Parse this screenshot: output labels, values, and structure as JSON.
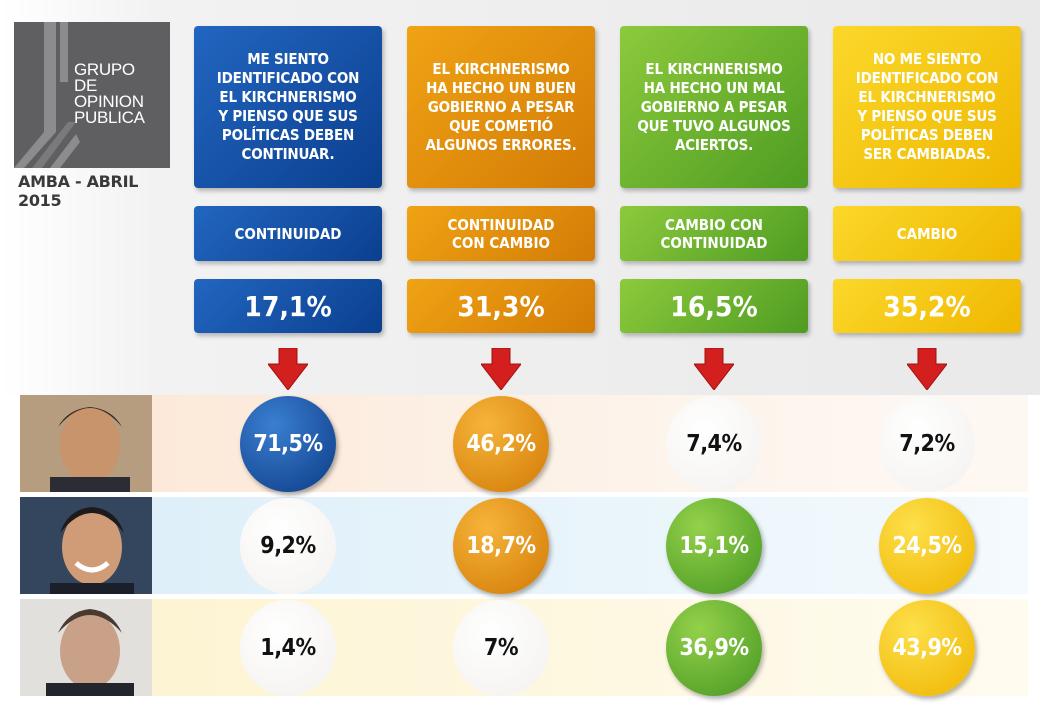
{
  "logo": {
    "text": "GRUPO\nDE\nOPINION\nPUBLICA",
    "subtitle": "AMBA - ABRIL 2015"
  },
  "colors": {
    "blue": "#1653a8",
    "orange": "#e38d0c",
    "green": "#6fb52f",
    "yellow": "#f7c815",
    "arrow": "#d41f1f"
  },
  "columns": [
    {
      "description": "ME SIENTO\nIDENTIFICADO CON\nEL KIRCHNERISMO\nY PIENSO QUE SUS\nPOLÍTICAS DEBEN\nCONTINUAR.",
      "label": "CONTINUIDAD",
      "percent": "17,1%"
    },
    {
      "description": "EL KIRCHNERISMO\nHA HECHO UN BUEN\nGOBIERNO A PESAR\nQUE COMETIÓ\nALGUNOS ERRORES.",
      "label": "CONTINUIDAD\nCON CAMBIO",
      "percent": "31,3%"
    },
    {
      "description": "EL KIRCHNERISMO\nHA HECHO UN MAL\nGOBIERNO A PESAR\nQUE TUVO ALGUNOS\nACIERTOS.",
      "label": "CAMBIO CON\nCONTINUIDAD",
      "percent": "16,5%"
    },
    {
      "description": "NO ME SIENTO\nIDENTIFICADO CON\nEL KIRCHNERISMO\nY PIENSO QUE SUS\nPOLÍTICAS DEBEN\nSER CAMBIADAS.",
      "label": "CAMBIO",
      "percent": "35,2%"
    }
  ],
  "chart_data": {
    "type": "table",
    "categories": [
      "CONTINUIDAD",
      "CONTINUIDAD\nCON CAMBIO",
      "CAMBIO CON\nCONTINUIDAD",
      "CAMBIO"
    ],
    "category_shares": [
      17.1,
      31.3,
      16.5,
      35.2
    ],
    "series": [
      {
        "values": [
          71.5,
          46.2,
          7.4,
          7.2
        ],
        "labels": [
          "71,5%",
          "46,2%",
          "7,4%",
          "7,2%"
        ],
        "highlight": [
          "blue",
          "orange",
          "white",
          "white"
        ]
      },
      {
        "values": [
          9.2,
          18.7,
          15.1,
          24.5
        ],
        "labels": [
          "9,2%",
          "18,7%",
          "15,1%",
          "24,5%"
        ],
        "highlight": [
          "white",
          "orange",
          "green",
          "yellow"
        ]
      },
      {
        "values": [
          1.4,
          7,
          36.9,
          43.9
        ],
        "labels": [
          "1,4%",
          "7%",
          "36,9%",
          "43,9%"
        ],
        "highlight": [
          "white",
          "white",
          "green",
          "yellow"
        ]
      }
    ]
  }
}
